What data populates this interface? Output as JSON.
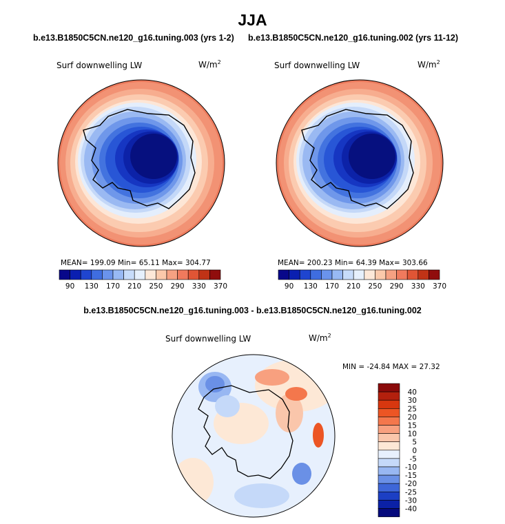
{
  "figure": {
    "season": "JJA",
    "variable_label": "Surf downwelling LW",
    "units_base": "W/m",
    "units_exp": "2"
  },
  "panels": [
    {
      "case": "b.e13.B1850C5CN.ne120_g16.tuning.003 (yrs 1-2)",
      "stats": {
        "mean": "199.09",
        "min": "65.11",
        "max": "304.77",
        "text": "MEAN= 199.09   Min=  65.11   Max= 304.77"
      }
    },
    {
      "case": "b.e13.B1850C5CN.ne120_g16.tuning.002 (yrs 11-12)",
      "stats": {
        "mean": "200.23",
        "min": "64.39",
        "max": "303.66",
        "text": "MEAN= 200.23   Min=  64.39   Max= 303.66"
      }
    }
  ],
  "abs_colorbar": {
    "labels": [
      "90",
      "130",
      "170",
      "210",
      "250",
      "290",
      "330",
      "370"
    ],
    "colors": [
      "#08088a",
      "#0a1fb0",
      "#1f45d0",
      "#3f6de0",
      "#6a93ec",
      "#98b9f4",
      "#c7dcfa",
      "#e6f0fc",
      "#fde8d8",
      "#fbc9ab",
      "#f6a182",
      "#f07a5d",
      "#e05535",
      "#c03316",
      "#900d0d"
    ]
  },
  "difference": {
    "title": "b.e13.B1850C5CN.ne120_g16.tuning.003 - b.e13.B1850C5CN.ne120_g16.tuning.002",
    "minmax_text": "MIN = -24.84  MAX =  27.32",
    "min": -24.84,
    "max": 27.32,
    "colorbar": {
      "labels": [
        "40",
        "30",
        "25",
        "20",
        "15",
        "10",
        "5",
        "0",
        "-5",
        "-10",
        "-15",
        "-20",
        "-25",
        "-30",
        "-40"
      ],
      "colors": [
        "#8a0a0a",
        "#b3200d",
        "#d8370f",
        "#ec5524",
        "#f4774c",
        "#f8a07f",
        "#fac6ab",
        "#fde8d6",
        "#e7f0fd",
        "#c5d9f9",
        "#98b7f2",
        "#6a90e6",
        "#3e66d8",
        "#1c3fc4",
        "#0b21a6",
        "#060a7c"
      ]
    }
  }
}
